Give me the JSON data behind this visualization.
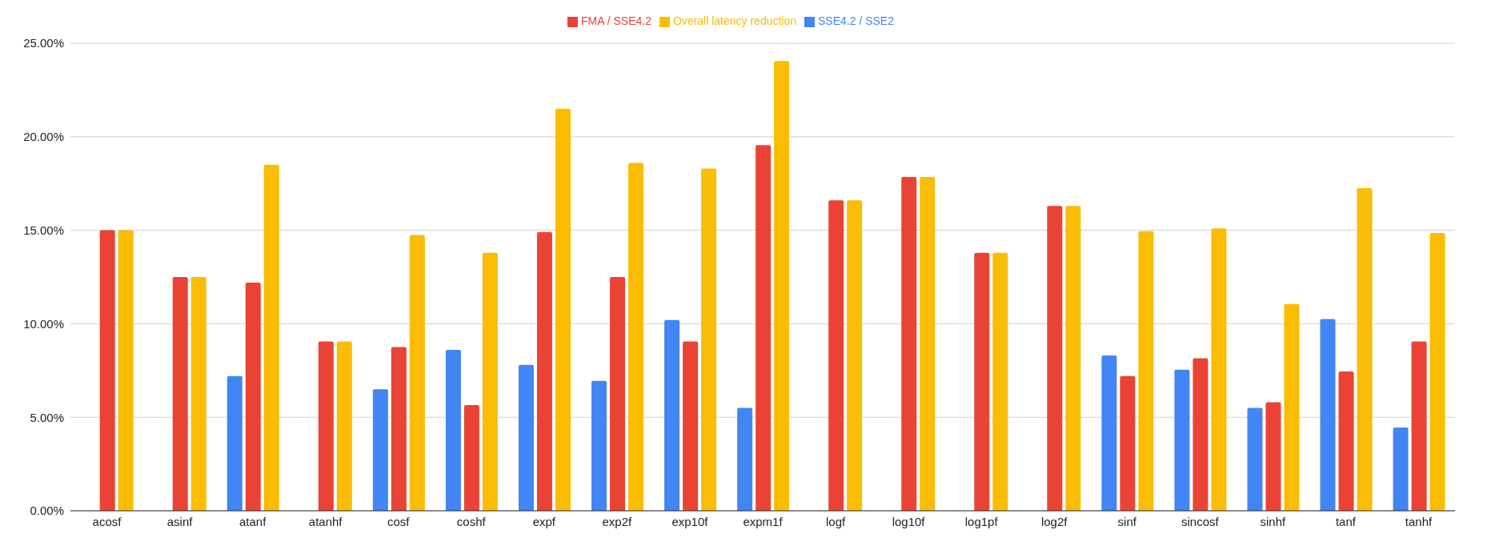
{
  "chart_data": {
    "type": "bar",
    "categories": [
      "acosf",
      "asinf",
      "atanf",
      "atanhf",
      "cosf",
      "coshf",
      "expf",
      "exp2f",
      "exp10f",
      "expm1f",
      "logf",
      "log10f",
      "log1pf",
      "log2f",
      "sinf",
      "sincosf",
      "sinhf",
      "tanf",
      "tanhf"
    ],
    "series": [
      {
        "name": "SSE4.2 / SSE2",
        "color": "#4285f4",
        "values": [
          null,
          null,
          7.2,
          null,
          6.5,
          8.6,
          7.8,
          6.95,
          10.2,
          5.5,
          null,
          null,
          null,
          null,
          8.3,
          7.55,
          5.5,
          10.25,
          4.45
        ]
      },
      {
        "name": "FMA / SSE4.2",
        "color": "#ea4335",
        "values": [
          15.0,
          12.5,
          12.2,
          9.05,
          8.75,
          5.65,
          14.9,
          12.5,
          9.05,
          19.55,
          16.6,
          17.85,
          13.8,
          16.3,
          7.2,
          8.15,
          5.8,
          7.45,
          9.05
        ]
      },
      {
        "name": "Overall latency reduction",
        "color": "#fbbc04",
        "values": [
          15.0,
          12.5,
          18.5,
          9.05,
          14.75,
          13.8,
          21.5,
          18.6,
          18.3,
          24.05,
          16.6,
          17.85,
          13.8,
          16.3,
          14.95,
          15.1,
          11.05,
          17.25,
          14.85
        ]
      }
    ],
    "ylim": [
      0,
      25
    ],
    "yticks": [
      {
        "value": 0,
        "label": "0.00%"
      },
      {
        "value": 5,
        "label": "5.00%"
      },
      {
        "value": 10,
        "label": "10.00%"
      },
      {
        "value": 15,
        "label": "15.00%"
      },
      {
        "value": 20,
        "label": "20.00%"
      },
      {
        "value": 25,
        "label": "25.00%"
      }
    ],
    "grid": "y",
    "legend": "top"
  }
}
